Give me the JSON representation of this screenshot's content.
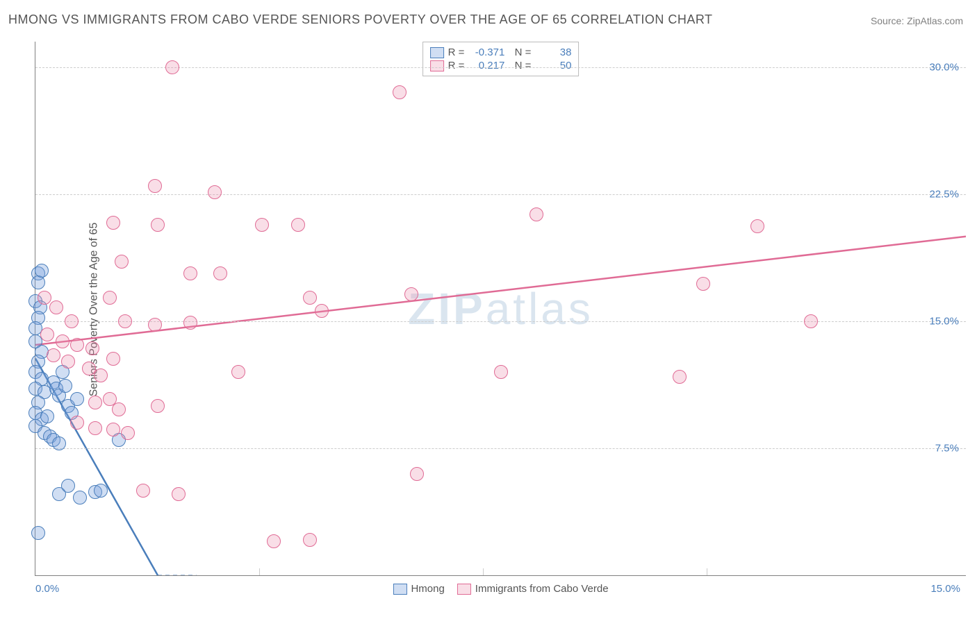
{
  "title": "HMONG VS IMMIGRANTS FROM CABO VERDE SENIORS POVERTY OVER THE AGE OF 65 CORRELATION CHART",
  "source": "Source: ZipAtlas.com",
  "ylabel": "Seniors Poverty Over the Age of 65",
  "watermark_prefix": "ZIP",
  "watermark_suffix": "atlas",
  "chart": {
    "type": "scatter",
    "background_color": "#ffffff",
    "grid_color": "#cccccc",
    "axis_color": "#808080",
    "tick_label_color": "#4a7ebb",
    "xlim": [
      0,
      15.6
    ],
    "ylim": [
      0,
      31.5
    ],
    "yticks": [
      {
        "v": 7.5,
        "label": "7.5%"
      },
      {
        "v": 15.0,
        "label": "15.0%"
      },
      {
        "v": 22.5,
        "label": "22.5%"
      },
      {
        "v": 30.0,
        "label": "30.0%"
      }
    ],
    "xticks_minor": [
      3.75,
      7.5,
      11.25
    ],
    "xtick_labels": [
      {
        "v": 0.0,
        "label": "0.0%"
      },
      {
        "v": 15.0,
        "label": "15.0%"
      }
    ],
    "marker_radius": 10,
    "marker_border_width": 1.5,
    "series": [
      {
        "name": "Hmong",
        "fill": "rgba(120,160,220,0.35)",
        "stroke": "#4a7ebb",
        "trend": {
          "x1": 0.0,
          "y1": 12.8,
          "x2": 2.05,
          "y2": 0.0,
          "width": 2.5
        },
        "trend_dash": {
          "x1": 0.0,
          "y1": 12.8,
          "x2": 2.7,
          "y2": -4.0
        },
        "R": "-0.371",
        "N": "38",
        "points": [
          [
            0.05,
            17.8
          ],
          [
            0.05,
            17.3
          ],
          [
            0.1,
            18.0
          ],
          [
            0.0,
            16.2
          ],
          [
            0.08,
            15.8
          ],
          [
            0.05,
            15.2
          ],
          [
            0.0,
            14.6
          ],
          [
            0.0,
            13.8
          ],
          [
            0.1,
            13.2
          ],
          [
            0.05,
            12.6
          ],
          [
            0.0,
            12.0
          ],
          [
            0.1,
            11.6
          ],
          [
            0.0,
            11.0
          ],
          [
            0.15,
            10.8
          ],
          [
            0.05,
            10.2
          ],
          [
            0.0,
            9.6
          ],
          [
            0.1,
            9.2
          ],
          [
            0.2,
            9.4
          ],
          [
            0.0,
            8.8
          ],
          [
            0.15,
            8.4
          ],
          [
            0.3,
            11.4
          ],
          [
            0.35,
            11.0
          ],
          [
            0.4,
            10.6
          ],
          [
            0.45,
            12.0
          ],
          [
            0.5,
            11.2
          ],
          [
            0.25,
            8.2
          ],
          [
            0.3,
            8.0
          ],
          [
            0.4,
            7.8
          ],
          [
            0.55,
            10.0
          ],
          [
            0.6,
            9.6
          ],
          [
            0.7,
            10.4
          ],
          [
            0.4,
            4.8
          ],
          [
            0.55,
            5.3
          ],
          [
            0.75,
            4.6
          ],
          [
            1.0,
            4.9
          ],
          [
            1.1,
            5.0
          ],
          [
            1.4,
            8.0
          ],
          [
            0.05,
            2.5
          ]
        ]
      },
      {
        "name": "Immigrants from Cabo Verde",
        "fill": "rgba(235,145,175,0.30)",
        "stroke": "#e06b95",
        "trend": {
          "x1": 0.0,
          "y1": 13.6,
          "x2": 15.6,
          "y2": 20.0,
          "width": 2.5
        },
        "R": "0.217",
        "N": "50",
        "points": [
          [
            2.3,
            30.0
          ],
          [
            6.1,
            28.5
          ],
          [
            2.0,
            23.0
          ],
          [
            3.0,
            22.6
          ],
          [
            1.3,
            20.8
          ],
          [
            2.05,
            20.7
          ],
          [
            3.8,
            20.7
          ],
          [
            4.4,
            20.7
          ],
          [
            8.4,
            21.3
          ],
          [
            12.1,
            20.6
          ],
          [
            1.45,
            18.5
          ],
          [
            2.6,
            17.8
          ],
          [
            3.1,
            17.8
          ],
          [
            11.2,
            17.2
          ],
          [
            0.15,
            16.4
          ],
          [
            0.35,
            15.8
          ],
          [
            0.6,
            15.0
          ],
          [
            1.25,
            16.4
          ],
          [
            1.5,
            15.0
          ],
          [
            2.0,
            14.8
          ],
          [
            2.6,
            14.9
          ],
          [
            4.6,
            16.4
          ],
          [
            4.8,
            15.6
          ],
          [
            6.3,
            16.6
          ],
          [
            0.2,
            14.2
          ],
          [
            0.45,
            13.8
          ],
          [
            0.7,
            13.6
          ],
          [
            0.95,
            13.4
          ],
          [
            0.3,
            13.0
          ],
          [
            0.55,
            12.6
          ],
          [
            0.9,
            12.2
          ],
          [
            1.1,
            11.8
          ],
          [
            1.3,
            12.8
          ],
          [
            1.0,
            10.2
          ],
          [
            1.25,
            10.4
          ],
          [
            1.4,
            9.8
          ],
          [
            2.05,
            10.0
          ],
          [
            3.4,
            12.0
          ],
          [
            7.8,
            12.0
          ],
          [
            10.8,
            11.7
          ],
          [
            0.7,
            9.0
          ],
          [
            1.0,
            8.7
          ],
          [
            1.3,
            8.6
          ],
          [
            1.55,
            8.4
          ],
          [
            6.4,
            6.0
          ],
          [
            1.8,
            5.0
          ],
          [
            2.4,
            4.8
          ],
          [
            4.0,
            2.0
          ],
          [
            4.6,
            2.1
          ],
          [
            13.0,
            15.0
          ]
        ]
      }
    ],
    "legend_bottom": [
      {
        "key": 0,
        "label": "Hmong"
      },
      {
        "key": 1,
        "label": "Immigrants from Cabo Verde"
      }
    ]
  }
}
